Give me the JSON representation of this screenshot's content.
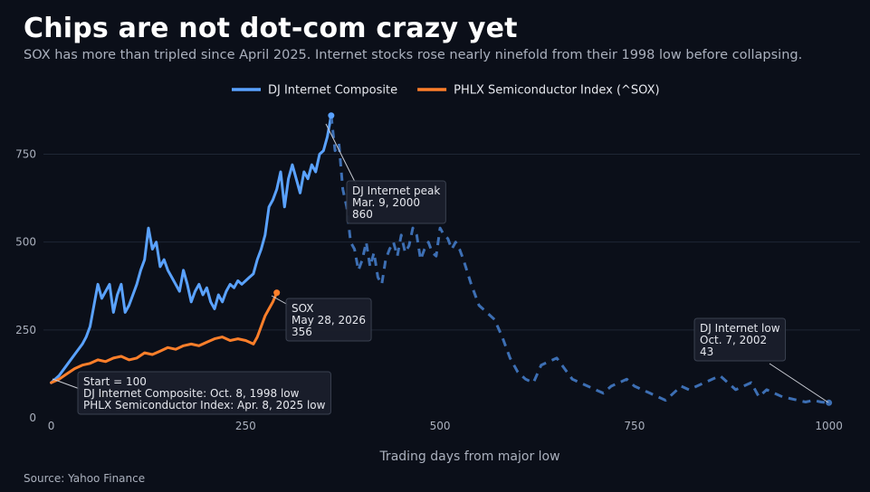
{
  "header": {
    "title": "Chips are not dot-com crazy yet",
    "subtitle": "SOX has more than tripled since April 2025. Internet stocks rose nearly ninefold from their 1998 low before collapsing."
  },
  "footer": {
    "source": "Source: Yahoo Finance"
  },
  "colors": {
    "background": "#0b0f19",
    "dj_solid": "#5aa2ff",
    "dj_dashed": "#3d6fb4",
    "sox": "#ff7f2a",
    "grid": "#1f2635",
    "text": "#e6e8ee",
    "muted": "#aab0bd",
    "annotation_bg": "#1a1f2b",
    "annotation_border": "#3a4150"
  },
  "chart_data": {
    "type": "line",
    "title": "Chips are not dot-com crazy yet",
    "xlabel": "Trading days from major low",
    "ylabel": "",
    "xlim": [
      -10,
      1040
    ],
    "ylim": [
      0,
      880
    ],
    "xticks": [
      0,
      250,
      500,
      750,
      1000
    ],
    "yticks": [
      0,
      250,
      500,
      750
    ],
    "grid": "horizontal",
    "legend": "top-center",
    "series": [
      {
        "name": "DJ Internet Composite",
        "color": "#5aa2ff",
        "x": [
          0,
          10,
          20,
          30,
          40,
          45,
          50,
          55,
          60,
          65,
          70,
          75,
          80,
          85,
          90,
          95,
          100,
          105,
          110,
          115,
          120,
          125,
          130,
          135,
          140,
          145,
          150,
          155,
          160,
          165,
          170,
          175,
          180,
          185,
          190,
          195,
          200,
          205,
          210,
          215,
          220,
          225,
          230,
          235,
          240,
          245,
          250,
          255,
          260,
          265,
          270,
          275,
          280,
          285,
          290,
          295,
          300,
          305,
          310,
          315,
          320,
          325,
          330,
          335,
          340,
          345,
          350,
          355,
          360
        ],
        "y": [
          100,
          120,
          150,
          180,
          210,
          230,
          260,
          320,
          380,
          340,
          360,
          380,
          300,
          350,
          380,
          300,
          320,
          350,
          380,
          420,
          450,
          540,
          480,
          500,
          430,
          450,
          420,
          400,
          380,
          360,
          420,
          380,
          330,
          360,
          380,
          350,
          370,
          330,
          310,
          350,
          330,
          360,
          380,
          370,
          390,
          380,
          390,
          400,
          410,
          450,
          480,
          520,
          600,
          620,
          650,
          700,
          600,
          680,
          720,
          680,
          640,
          700,
          680,
          720,
          700,
          750,
          760,
          800,
          860
        ]
      },
      {
        "name": "DJ Internet Composite (after peak)",
        "color": "#3d6fb4",
        "x": [
          360,
          365,
          370,
          375,
          380,
          385,
          390,
          395,
          400,
          405,
          410,
          415,
          420,
          425,
          430,
          435,
          440,
          445,
          450,
          455,
          460,
          465,
          470,
          475,
          480,
          485,
          490,
          495,
          500,
          505,
          510,
          515,
          520,
          525,
          530,
          540,
          550,
          560,
          570,
          580,
          590,
          600,
          610,
          620,
          630,
          640,
          650,
          660,
          670,
          680,
          690,
          700,
          710,
          720,
          730,
          740,
          750,
          760,
          770,
          780,
          790,
          800,
          810,
          820,
          830,
          840,
          850,
          860,
          870,
          880,
          890,
          900,
          910,
          920,
          930,
          940,
          950,
          960,
          970,
          980,
          990,
          1000
        ],
        "y": [
          860,
          760,
          780,
          650,
          600,
          500,
          480,
          420,
          450,
          500,
          430,
          470,
          400,
          380,
          450,
          480,
          500,
          460,
          520,
          470,
          490,
          540,
          520,
          450,
          480,
          500,
          470,
          460,
          540,
          520,
          510,
          480,
          500,
          480,
          450,
          380,
          320,
          300,
          280,
          230,
          170,
          130,
          110,
          100,
          150,
          160,
          170,
          140,
          110,
          100,
          90,
          80,
          70,
          90,
          100,
          110,
          90,
          80,
          70,
          60,
          50,
          70,
          90,
          80,
          90,
          100,
          110,
          120,
          100,
          80,
          90,
          100,
          60,
          80,
          70,
          60,
          55,
          50,
          45,
          50,
          45,
          43
        ]
      },
      {
        "name": "PHLX Semiconductor Index (^SOX)",
        "color": "#ff7f2a",
        "x": [
          0,
          10,
          20,
          30,
          40,
          50,
          60,
          70,
          80,
          90,
          100,
          110,
          120,
          130,
          140,
          150,
          160,
          170,
          180,
          190,
          200,
          210,
          220,
          230,
          240,
          250,
          255,
          260,
          265,
          270,
          275,
          280,
          285,
          290
        ],
        "y": [
          100,
          110,
          125,
          140,
          150,
          155,
          165,
          160,
          170,
          175,
          165,
          170,
          185,
          180,
          190,
          200,
          195,
          205,
          210,
          205,
          215,
          225,
          230,
          220,
          225,
          220,
          215,
          210,
          230,
          260,
          290,
          310,
          330,
          356
        ]
      }
    ],
    "annotations": [
      {
        "lines": [
          "DJ Internet peak",
          "Mar. 9, 2000",
          "860"
        ],
        "point_x": 360,
        "point_y": 860
      },
      {
        "lines": [
          "SOX",
          "May 28, 2026",
          "356"
        ],
        "point_x": 290,
        "point_y": 356
      },
      {
        "lines": [
          "DJ Internet low",
          "Oct. 7, 2002",
          "43"
        ],
        "point_x": 1000,
        "point_y": 43
      },
      {
        "lines": [
          "Start = 100",
          "DJ Internet Composite: Oct. 8, 1998 low",
          "PHLX Semiconductor Index: Apr. 8, 2025 low"
        ],
        "point_x": 0,
        "point_y": 100
      }
    ]
  }
}
